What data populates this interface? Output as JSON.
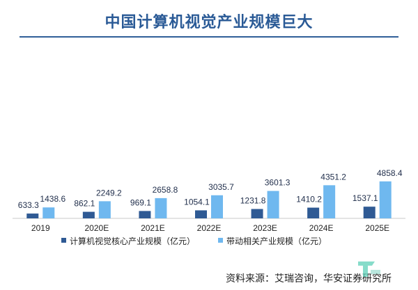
{
  "title": "中国计算机视觉产业规模巨大",
  "source": "资料来源：艾瑞咨询，华安证券研究所",
  "colors": {
    "core": "#2f5a94",
    "related": "#6fb8ef",
    "title": "#2a5a96"
  },
  "chart_data": {
    "type": "bar",
    "title": "中国计算机视觉产业规模巨大",
    "categories": [
      "2019",
      "2020E",
      "2021E",
      "2022E",
      "2023E",
      "2024E",
      "2025E"
    ],
    "series": [
      {
        "name": "计算机视觉核心产业规模（亿元）",
        "values": [
          633.3,
          862.1,
          969.1,
          1054.1,
          1231.8,
          1410.2,
          1537.1
        ]
      },
      {
        "name": "带动相关产业规模（亿元）",
        "values": [
          1438.6,
          2249.2,
          2658.8,
          3035.7,
          3601.3,
          4351.2,
          4858.4
        ]
      }
    ],
    "labels": [
      [
        "633.3",
        "862.1",
        "969.1",
        "1054.1",
        "1231.8",
        "1410.2",
        "1537.1"
      ],
      [
        "1438.6",
        "2249.2",
        "2658.8",
        "3035.7",
        "3601.3",
        "4351.2",
        "4858.4"
      ]
    ],
    "ylim": [
      0,
      5000
    ],
    "xlabel": "",
    "ylabel": "",
    "legend": "bottom",
    "grid": false
  }
}
